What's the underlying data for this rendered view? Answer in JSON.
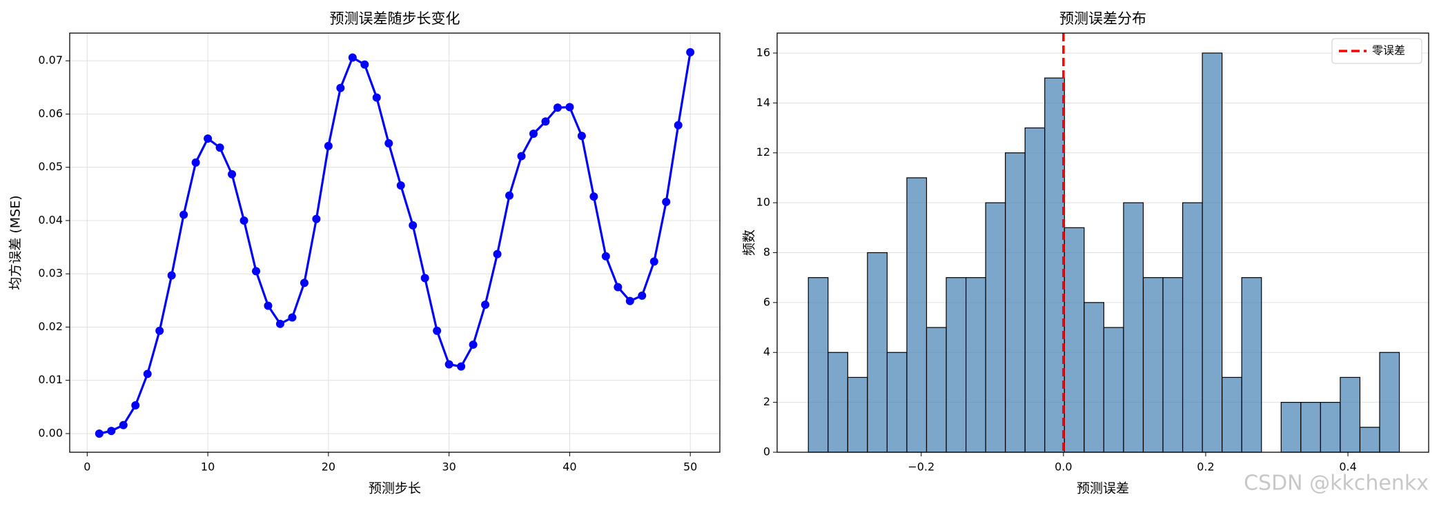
{
  "chart_data": [
    {
      "type": "line",
      "title": "预测误差随步长变化",
      "x_label": "预测步长",
      "y_label": "均方误差 (MSE)",
      "color": "#0000ff",
      "grid": "both",
      "x": [
        1,
        2,
        3,
        4,
        5,
        6,
        7,
        8,
        9,
        10,
        11,
        12,
        13,
        14,
        15,
        16,
        17,
        18,
        19,
        20,
        21,
        22,
        23,
        24,
        25,
        26,
        27,
        28,
        29,
        30,
        31,
        32,
        33,
        34,
        35,
        36,
        37,
        38,
        39,
        40,
        41,
        42,
        43,
        44,
        45,
        46,
        47,
        48,
        49,
        50
      ],
      "values": [
        0.0,
        0.0005,
        0.0016,
        0.0053,
        0.0112,
        0.0193,
        0.0297,
        0.0411,
        0.0509,
        0.0554,
        0.0537,
        0.0487,
        0.04,
        0.0305,
        0.024,
        0.0206,
        0.0218,
        0.0283,
        0.0403,
        0.054,
        0.0649,
        0.0706,
        0.0693,
        0.0631,
        0.0545,
        0.0466,
        0.0391,
        0.0292,
        0.0193,
        0.013,
        0.0126,
        0.0167,
        0.0242,
        0.0337,
        0.0447,
        0.0521,
        0.0563,
        0.0586,
        0.0612,
        0.0613,
        0.0559,
        0.0445,
        0.0333,
        0.0275,
        0.0249,
        0.0259,
        0.0323,
        0.0435,
        0.0579,
        0.0716
      ],
      "xlim": [
        -1.45,
        52.45
      ],
      "xticks": [
        0,
        10,
        20,
        30,
        40,
        50
      ],
      "ylim": [
        -0.0035,
        0.0752
      ],
      "yticks": [
        {
          "value": 0,
          "label": "0.00"
        },
        0.01,
        0.02,
        0.03,
        0.04,
        0.05,
        0.06,
        0.07
      ]
    },
    {
      "type": "histogram",
      "title": "预测误差分布",
      "x_label": "预测误差",
      "y_label": "频数",
      "color": "#4682b4",
      "alpha": 0.7,
      "edge_color": "#000000",
      "grid": "y",
      "bins": [
        -0.3587,
        -0.331,
        -0.3033,
        -0.2756,
        -0.2479,
        -0.2202,
        -0.1925,
        -0.1648,
        -0.1371,
        -0.1094,
        -0.0817,
        -0.054,
        -0.0263,
        0.0014,
        0.0291,
        0.0568,
        0.0845,
        0.1122,
        0.1399,
        0.1676,
        0.1953,
        0.223,
        0.2507,
        0.2784,
        0.3061,
        0.3338,
        0.3615,
        0.3892,
        0.4169,
        0.4446,
        0.4723
      ],
      "values": [
        7,
        4,
        3,
        8,
        4,
        11,
        5,
        7,
        7,
        10,
        12,
        13,
        15,
        9,
        6,
        5,
        10,
        7,
        7,
        10,
        16,
        3,
        7,
        0,
        2,
        2,
        2,
        3,
        1,
        4
      ],
      "xlim": [
        -0.4026,
        0.5135
      ],
      "xticks": [
        {
          "value": -0.2,
          "label": "−0.2"
        },
        {
          "value": 0,
          "label": "0.0"
        },
        0.2,
        0.4
      ],
      "ylim": [
        0,
        16.8
      ],
      "yticks": [
        0,
        2,
        4,
        6,
        8,
        10,
        12,
        14,
        16
      ],
      "vline": {
        "value": 0,
        "label": "零误差",
        "color": "#ff0000"
      },
      "legend": "upper right"
    }
  ],
  "watermark": "CSDN @kkchenkx"
}
